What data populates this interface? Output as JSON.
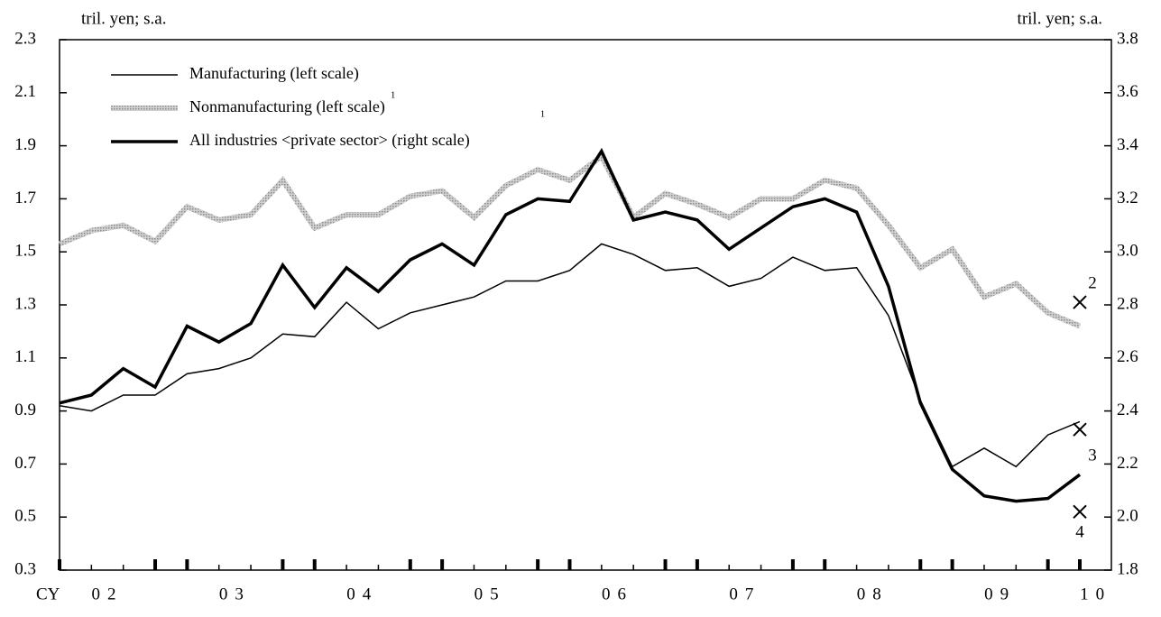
{
  "chart_data": {
    "type": "line",
    "y_label": "tril. yen; s.a.",
    "y2_label": "tril. yen; s.a.",
    "x_prefix": "CY",
    "categories": [
      null,
      "02",
      null,
      null,
      null,
      "03",
      null,
      null,
      null,
      "04",
      null,
      null,
      null,
      "05",
      null,
      null,
      null,
      "06",
      null,
      null,
      null,
      "07",
      null,
      null,
      null,
      "08",
      null,
      null,
      null,
      "09",
      null,
      null,
      "10"
    ],
    "ylim": [
      0.3,
      2.3
    ],
    "yticks": [
      0.3,
      0.5,
      0.7,
      0.9,
      1.1,
      1.3,
      1.5,
      1.7,
      1.9,
      2.1,
      2.3
    ],
    "y2lim": [
      1.8,
      3.8
    ],
    "y2ticks": [
      1.8,
      {
        "value": 2.0,
        "label": "2.0"
      },
      2.2,
      2.4,
      2.6,
      2.8,
      {
        "value": 3.0,
        "label": "3.0"
      },
      3.2,
      3.4,
      3.6,
      3.8
    ],
    "series": [
      {
        "name": "Manufacturing (left scale)",
        "color": "#000000",
        "style": "thin",
        "values": [
          0.92,
          0.9,
          0.96,
          0.96,
          1.04,
          1.06,
          1.1,
          1.19,
          1.18,
          1.31,
          1.21,
          1.27,
          1.3,
          1.33,
          1.39,
          1.39,
          1.43,
          1.53,
          1.49,
          1.43,
          1.44,
          1.37,
          1.4,
          1.48,
          1.43,
          1.44,
          1.26,
          0.94,
          0.69,
          0.76,
          0.69,
          0.81,
          0.86
        ]
      },
      {
        "name": "Nonmanufacturing (left scale)",
        "note": "1",
        "color": "#b8b8b8",
        "style": "hatched",
        "values": [
          1.53,
          1.58,
          1.6,
          1.54,
          1.67,
          1.62,
          1.64,
          1.77,
          1.59,
          1.64,
          1.64,
          1.71,
          1.73,
          1.63,
          1.75,
          1.81,
          1.77,
          1.86,
          1.63,
          1.72,
          1.68,
          1.63,
          1.7,
          1.7,
          1.77,
          1.74,
          1.6,
          1.44,
          1.51,
          1.33,
          1.38,
          1.27,
          1.22
        ]
      },
      {
        "name": "All industries <private sector> (right scale)",
        "note": "1",
        "color": "#000000",
        "style": "thick",
        "axis": "y2",
        "values": [
          2.43,
          2.46,
          2.56,
          2.49,
          2.72,
          2.66,
          2.73,
          2.95,
          2.79,
          2.94,
          2.85,
          2.97,
          3.03,
          2.95,
          3.14,
          3.2,
          3.19,
          3.38,
          3.12,
          3.15,
          3.12,
          3.01,
          3.09,
          3.17,
          3.2,
          3.15,
          2.87,
          2.43,
          2.18,
          2.08,
          2.06,
          2.07,
          2.16
        ]
      }
    ],
    "forecasts": [
      {
        "label": "2",
        "index": 32,
        "value": 1.31
      },
      {
        "label": "3",
        "index": 32,
        "value": 0.83
      },
      {
        "label": "4",
        "index": 32,
        "value": 2.02,
        "axis": "y2"
      }
    ]
  }
}
